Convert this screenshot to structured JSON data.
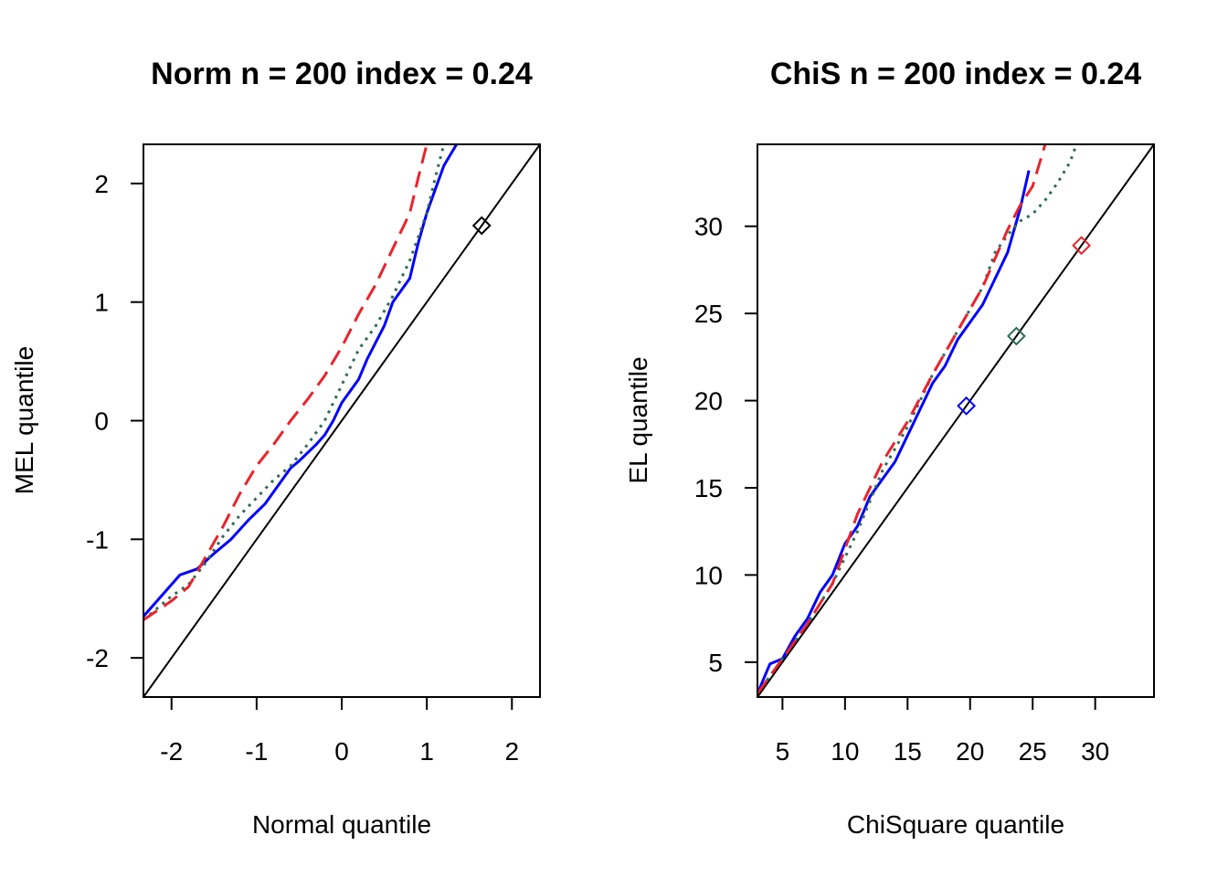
{
  "chart_data": [
    {
      "type": "line",
      "title": "Norm n = 200 index = 0.24",
      "xlabel": "Normal quantile",
      "ylabel": "MEL quantile",
      "xlim": [
        -2.33,
        2.33
      ],
      "ylim": [
        -2.33,
        2.33
      ],
      "xticks": [
        "-2",
        "-1",
        "0",
        "1",
        "2"
      ],
      "yticks": [
        "-2",
        "-1",
        "0",
        "1",
        "2"
      ],
      "grid": false,
      "reference_line": "y = x",
      "series": [
        {
          "color": "#0000ff",
          "dash": "solid",
          "x": [
            -2.33,
            -1.9,
            -1.7,
            -1.5,
            -1.3,
            -1.1,
            -1.0,
            -0.9,
            -0.8,
            -0.7,
            -0.6,
            -0.5,
            -0.3,
            -0.2,
            -0.1,
            0.0,
            0.2,
            0.3,
            0.5,
            0.6,
            0.7,
            0.8,
            0.9,
            1.0,
            1.1,
            1.2,
            1.35
          ],
          "y": [
            -1.65,
            -1.3,
            -1.25,
            -1.12,
            -1.0,
            -0.84,
            -0.77,
            -0.7,
            -0.6,
            -0.5,
            -0.4,
            -0.34,
            -0.2,
            -0.12,
            0.0,
            0.15,
            0.35,
            0.52,
            0.8,
            1.0,
            1.1,
            1.2,
            1.5,
            1.75,
            1.95,
            2.15,
            2.33
          ]
        },
        {
          "color": "#2e6b57",
          "dash": "dotted",
          "x": [
            -2.33,
            -2.0,
            -1.8,
            -1.6,
            -1.4,
            -1.2,
            -1.0,
            -0.8,
            -0.6,
            -0.4,
            -0.2,
            0.0,
            0.2,
            0.4,
            0.6,
            0.8,
            1.0,
            1.1,
            1.2
          ],
          "y": [
            -1.68,
            -1.48,
            -1.38,
            -1.2,
            -0.98,
            -0.8,
            -0.65,
            -0.5,
            -0.38,
            -0.2,
            0.0,
            0.3,
            0.6,
            0.8,
            1.05,
            1.35,
            1.75,
            2.05,
            2.33
          ]
        },
        {
          "color": "#e8242c",
          "dash": "dashed",
          "x": [
            -2.33,
            -2.0,
            -1.8,
            -1.6,
            -1.4,
            -1.2,
            -1.0,
            -0.8,
            -0.6,
            -0.4,
            -0.2,
            0.0,
            0.2,
            0.4,
            0.6,
            0.8,
            0.9,
            1.0
          ],
          "y": [
            -1.68,
            -1.52,
            -1.4,
            -1.15,
            -0.9,
            -0.62,
            -0.38,
            -0.2,
            0.0,
            0.18,
            0.38,
            0.62,
            0.9,
            1.15,
            1.45,
            1.75,
            2.05,
            2.33
          ]
        }
      ],
      "markers": [
        {
          "x": 1.645,
          "y": 1.645,
          "shape": "diamond",
          "color": "#000000"
        }
      ]
    },
    {
      "type": "line",
      "title": "ChiS n = 200 index = 0.24",
      "xlabel": "ChiSquare quantile",
      "ylabel": "EL quantile",
      "xlim": [
        3,
        34.7
      ],
      "ylim": [
        3,
        34.7
      ],
      "xticks": [
        "5",
        "10",
        "15",
        "20",
        "25",
        "30"
      ],
      "yticks": [
        "5",
        "10",
        "15",
        "20",
        "25",
        "30"
      ],
      "grid": false,
      "reference_line": "y = x",
      "series": [
        {
          "color": "#0000ff",
          "dash": "solid",
          "x": [
            3.0,
            4.0,
            5.0,
            6.0,
            7.0,
            8.0,
            9.0,
            10.0,
            11.0,
            12.0,
            13.0,
            14.0,
            15.0,
            16.0,
            17.0,
            18.0,
            19.0,
            20.0,
            21.0,
            22.0,
            23.0,
            24.0,
            24.7
          ],
          "y": [
            3.2,
            4.9,
            5.2,
            6.5,
            7.5,
            9.0,
            10.0,
            11.8,
            12.8,
            14.5,
            15.5,
            16.5,
            18.0,
            19.5,
            21.0,
            22.0,
            23.5,
            24.5,
            25.5,
            27.0,
            28.5,
            31.0,
            33.2
          ]
        },
        {
          "color": "#2e6b57",
          "dash": "dotted",
          "x": [
            3.0,
            5.0,
            7.0,
            9.0,
            11.0,
            13.0,
            15.0,
            17.0,
            19.0,
            21.0,
            22.0,
            23.0,
            24.0,
            25.0,
            26.0,
            27.0,
            28.0,
            28.5
          ],
          "y": [
            3.2,
            5.2,
            7.2,
            9.5,
            12.5,
            16.0,
            18.5,
            21.5,
            24.0,
            26.5,
            28.5,
            29.5,
            30.3,
            30.7,
            31.5,
            32.5,
            33.7,
            34.7
          ]
        },
        {
          "color": "#e8242c",
          "dash": "dashed",
          "x": [
            3.0,
            5.0,
            7.0,
            9.0,
            11.0,
            13.0,
            15.0,
            17.0,
            19.0,
            21.0,
            23.0,
            24.0,
            25.0,
            26.0
          ],
          "y": [
            3.2,
            5.2,
            7.2,
            9.5,
            13.5,
            16.5,
            18.8,
            21.5,
            24.0,
            26.5,
            29.8,
            31.2,
            32.3,
            34.7
          ]
        }
      ],
      "markers": [
        {
          "x": 19.7,
          "y": 19.7,
          "shape": "diamond",
          "color": "#0000ff"
        },
        {
          "x": 23.7,
          "y": 23.7,
          "shape": "diamond",
          "color": "#2e6b57"
        },
        {
          "x": 28.9,
          "y": 28.9,
          "shape": "diamond",
          "color": "#e8242c"
        }
      ]
    }
  ]
}
